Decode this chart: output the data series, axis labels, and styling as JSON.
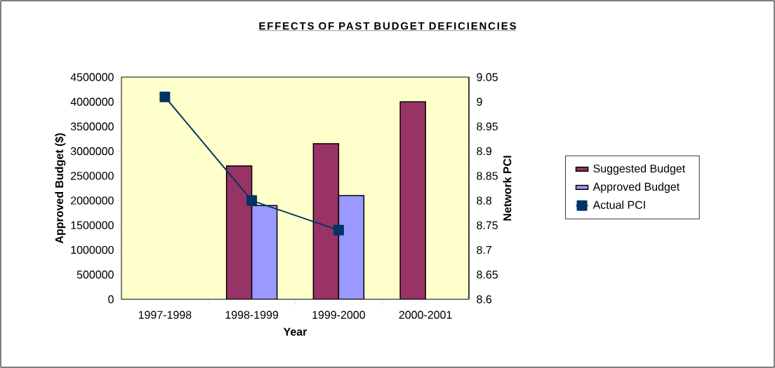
{
  "chart_data": {
    "type": "bar",
    "title": "EFFECTS OF PAST BUDGET DEFICIENCIES",
    "xlabel": "Year",
    "ylabel": "Approved Budget ($)",
    "y2label": "Network PCI",
    "categories": [
      "1997-1998",
      "1998-1999",
      "1999-2000",
      "2000-2001"
    ],
    "series": [
      {
        "name": "Suggested Budget",
        "color": "#993366",
        "values": [
          null,
          2700000,
          3150000,
          4000000
        ]
      },
      {
        "name": "Approved Budget",
        "color": "#9999ff",
        "values": [
          null,
          1900000,
          2100000,
          null
        ]
      },
      {
        "name": "Actual PCI",
        "type": "line",
        "axis": "y2",
        "color": "#003366",
        "values": [
          9.01,
          8.8,
          8.74,
          null
        ]
      }
    ],
    "ylim": [
      0,
      4500000
    ],
    "yticks": [
      0,
      500000,
      1000000,
      1500000,
      2000000,
      2500000,
      3000000,
      3500000,
      4000000,
      4500000
    ],
    "y2lim": [
      8.6,
      9.05
    ],
    "y2ticks": [
      8.6,
      8.65,
      8.7,
      8.75,
      8.8,
      8.85,
      8.9,
      8.95,
      9,
      9.05
    ],
    "legend": "right",
    "marker": "square",
    "line_style": "solid",
    "grid": false
  }
}
